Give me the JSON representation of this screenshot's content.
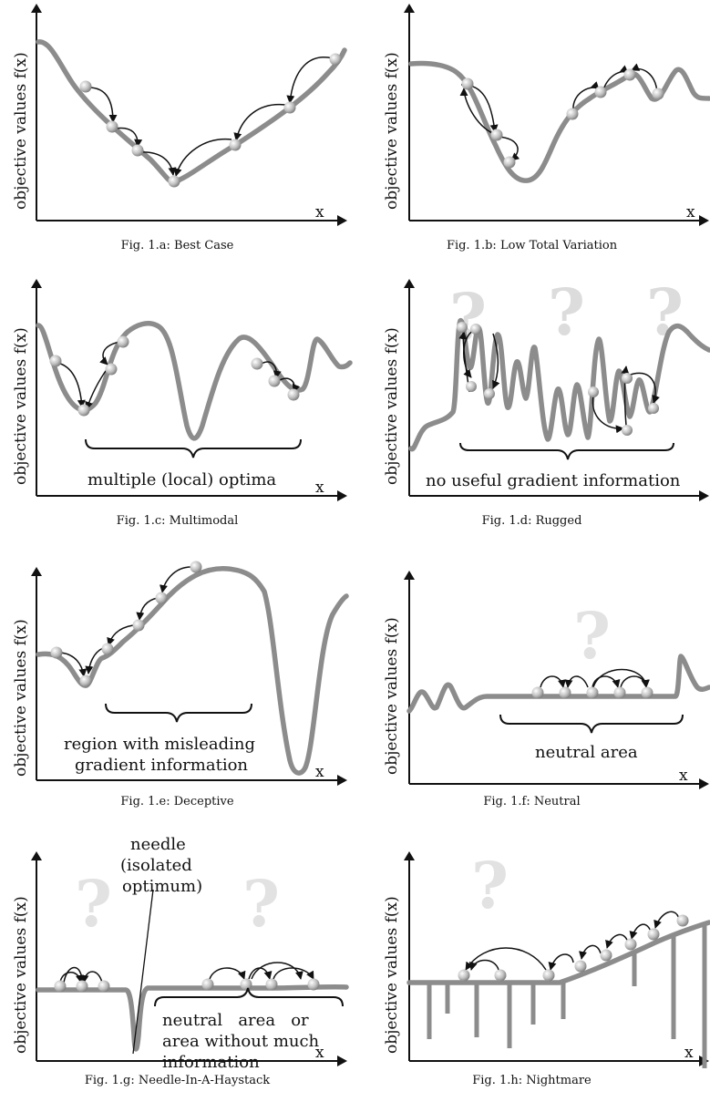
{
  "axes": {
    "ylabel": "objective values f(x)",
    "xlabel": "x"
  },
  "panels": [
    {
      "caption": "Fig. 1.a: Best Case",
      "notes": []
    },
    {
      "caption": "Fig. 1.b: Low Total Variation",
      "notes": []
    },
    {
      "caption": "Fig. 1.c: Multimodal",
      "notes": [
        "multiple (local) optima"
      ]
    },
    {
      "caption": "Fig. 1.d: Rugged",
      "notes": [
        "no useful gradient information"
      ],
      "mark": "?"
    },
    {
      "caption": "Fig. 1.e: Deceptive",
      "notes": [
        "region with misleading",
        "gradient information"
      ]
    },
    {
      "caption": "Fig. 1.f: Neutral",
      "notes": [
        "neutral area"
      ],
      "mark": "?"
    },
    {
      "caption": "Fig. 1.g: Needle-In-A-Haystack",
      "notes": [
        "needle",
        "(isolated",
        "optimum)",
        "neutral   area   or",
        "area without much",
        "information"
      ],
      "mark": "?"
    },
    {
      "caption": "Fig. 1.h: Nightmare",
      "notes": [],
      "mark": "?"
    }
  ],
  "colors": {
    "curve": "#8c8c8c",
    "axis": "#111111",
    "question_mark": "#dcdcdc"
  }
}
